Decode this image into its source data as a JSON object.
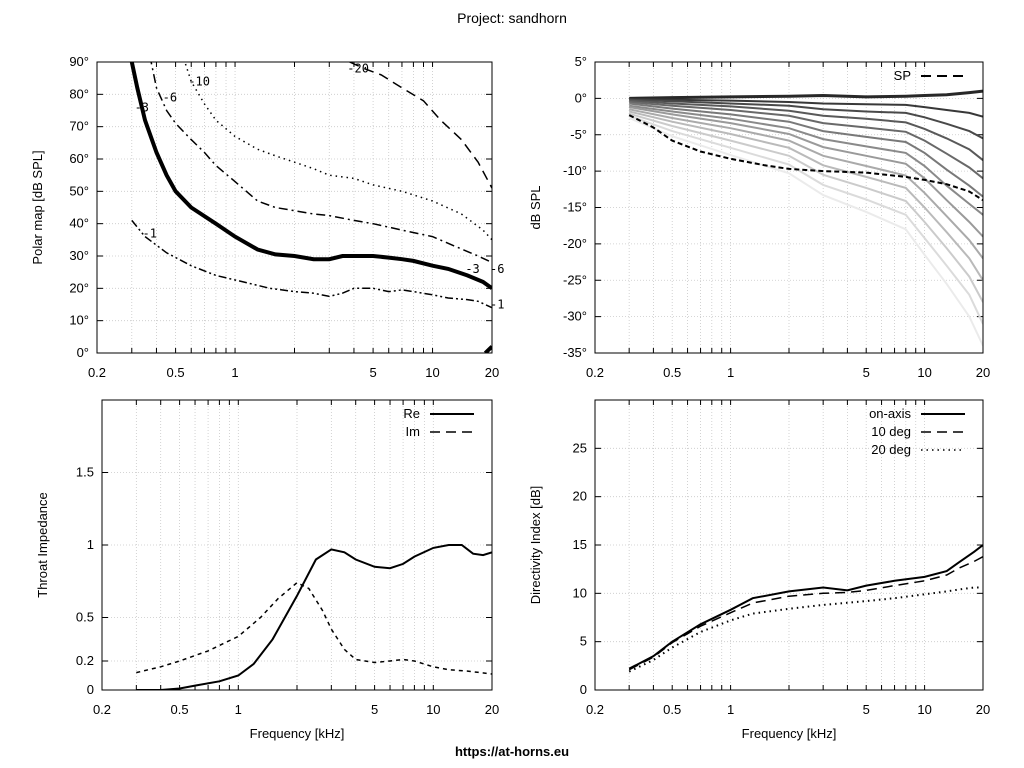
{
  "page": {
    "title": "Project: sandhorn",
    "footer": "https://at-horns.eu"
  },
  "chart_data": [
    {
      "id": "polar",
      "type": "contour",
      "ylabel": "Polar map [dB SPL]",
      "xlabel": "",
      "xscale": "log",
      "xlim": [
        0.2,
        20
      ],
      "ylim": [
        0,
        90
      ],
      "xticks": [
        0.2,
        0.5,
        1,
        5,
        10,
        20
      ],
      "xticklabels": [
        "0.2",
        "0.5",
        "1",
        "5",
        "10",
        "20"
      ],
      "yticks": [
        0,
        10,
        20,
        30,
        40,
        50,
        60,
        70,
        80,
        90
      ],
      "yticklabels": [
        "0°",
        "10°",
        "20°",
        "30°",
        "40°",
        "50°",
        "60°",
        "70°",
        "80°",
        "90°"
      ],
      "grid": true,
      "series": [
        {
          "name": "-1",
          "style": "dash-dot-dot",
          "width": 1.5,
          "points": [
            [
              0.3,
              41
            ],
            [
              0.35,
              36
            ],
            [
              0.45,
              31
            ],
            [
              0.6,
              27
            ],
            [
              0.8,
              24
            ],
            [
              1.1,
              22
            ],
            [
              1.5,
              20
            ],
            [
              2,
              19
            ],
            [
              2.5,
              18.5
            ],
            [
              3,
              17.5
            ],
            [
              3.5,
              18.5
            ],
            [
              4,
              20
            ],
            [
              5,
              20
            ],
            [
              6,
              19
            ],
            [
              7,
              19.5
            ],
            [
              8,
              19
            ],
            [
              10,
              18
            ],
            [
              12,
              17
            ],
            [
              15,
              16.5
            ],
            [
              17,
              16
            ],
            [
              20,
              14
            ]
          ],
          "label_at": [
            0.34,
            37
          ],
          "label_end": [
            20,
            15
          ]
        },
        {
          "name": "-3",
          "style": "solid",
          "width": 4,
          "points": [
            [
              0.3,
              90
            ],
            [
              0.32,
              82
            ],
            [
              0.35,
              72
            ],
            [
              0.4,
              62
            ],
            [
              0.45,
              55
            ],
            [
              0.5,
              50
            ],
            [
              0.6,
              45
            ],
            [
              0.8,
              40
            ],
            [
              1,
              36
            ],
            [
              1.3,
              32
            ],
            [
              1.6,
              30.5
            ],
            [
              2,
              30
            ],
            [
              2.5,
              29
            ],
            [
              3,
              29
            ],
            [
              3.5,
              30
            ],
            [
              4.5,
              30
            ],
            [
              5,
              30
            ],
            [
              6,
              29.5
            ],
            [
              7,
              29
            ],
            [
              8,
              28.5
            ],
            [
              10,
              27
            ],
            [
              12,
              26
            ],
            [
              15,
              24
            ],
            [
              18,
              22
            ],
            [
              20,
              20
            ]
          ],
          "label_at": [
            0.31,
            76
          ],
          "label_end": [
            15,
            26
          ]
        },
        {
          "name": "-6",
          "style": "dash-dot",
          "width": 1.5,
          "points": [
            [
              0.37,
              92
            ],
            [
              0.4,
              82
            ],
            [
              0.45,
              75
            ],
            [
              0.5,
              71
            ],
            [
              0.6,
              66
            ],
            [
              0.7,
              62
            ],
            [
              0.8,
              58
            ],
            [
              1,
              53
            ],
            [
              1.3,
              47
            ],
            [
              1.6,
              45
            ],
            [
              2,
              44
            ],
            [
              2.5,
              43
            ],
            [
              3,
              42.5
            ],
            [
              4,
              41
            ],
            [
              5,
              40
            ],
            [
              7,
              38
            ],
            [
              10,
              36
            ],
            [
              13,
              33
            ],
            [
              17,
              30
            ],
            [
              20,
              28
            ]
          ],
          "label_at": [
            0.43,
            79
          ],
          "label_end": [
            20,
            26
          ]
        },
        {
          "name": "-10",
          "style": "dotted",
          "width": 1.5,
          "points": [
            [
              0.55,
              91
            ],
            [
              0.6,
              84
            ],
            [
              0.7,
              77
            ],
            [
              0.8,
              72
            ],
            [
              1,
              67
            ],
            [
              1.3,
              63
            ],
            [
              1.6,
              61
            ],
            [
              2,
              59
            ],
            [
              2.5,
              57
            ],
            [
              3,
              55
            ],
            [
              4,
              54
            ],
            [
              5,
              52
            ],
            [
              7,
              50
            ],
            [
              10,
              47
            ],
            [
              14,
              43
            ],
            [
              18,
              38
            ],
            [
              20,
              35
            ]
          ],
          "label_at": [
            0.58,
            84
          ]
        },
        {
          "name": "-20",
          "style": "dashed",
          "width": 1.5,
          "points": [
            [
              3.8,
              90
            ],
            [
              4.5,
              88
            ],
            [
              5.5,
              86
            ],
            [
              7,
              82
            ],
            [
              9,
              78
            ],
            [
              11,
              72
            ],
            [
              14,
              66
            ],
            [
              17,
              59
            ],
            [
              20,
              51
            ]
          ],
          "label_at": [
            3.7,
            88
          ]
        },
        {
          "name": "",
          "style": "solid",
          "width": 4,
          "points": [
            [
              18.5,
              0
            ],
            [
              20,
              2
            ]
          ]
        }
      ]
    },
    {
      "id": "spl",
      "type": "line",
      "ylabel": "dB SPL",
      "xlabel": "",
      "xscale": "log",
      "xlim": [
        0.2,
        20
      ],
      "ylim": [
        -35,
        5
      ],
      "xticks": [
        0.2,
        0.5,
        1,
        5,
        10,
        20
      ],
      "xticklabels": [
        "0.2",
        "0.5",
        "1",
        "5",
        "10",
        "20"
      ],
      "yticks": [
        5,
        0,
        -5,
        -10,
        -15,
        -20,
        -25,
        -30,
        -35
      ],
      "yticklabels": [
        "5°",
        "0°",
        "-5°",
        "-10°",
        "-15°",
        "-20°",
        "-25°",
        "-30°",
        "-35°"
      ],
      "grid": true,
      "legend": {
        "position": "top-right",
        "entries": [
          "SP"
        ]
      },
      "family_x": [
        0.3,
        0.5,
        1,
        2,
        3,
        5,
        8,
        10,
        13,
        17,
        20
      ],
      "family": [
        [
          0,
          0.1,
          0.2,
          0.3,
          0.4,
          0.2,
          0.3,
          0.4,
          0.5,
          0.8,
          1
        ],
        [
          -0.1,
          -0.2,
          -0.3,
          -0.5,
          -0.7,
          -0.8,
          -0.9,
          -1.2,
          -1.6,
          -2,
          -2.5
        ],
        [
          -0.2,
          -0.4,
          -0.7,
          -1,
          -1.5,
          -1.8,
          -2,
          -2.6,
          -3.5,
          -4.5,
          -5.5
        ],
        [
          -0.3,
          -0.7,
          -1.1,
          -1.7,
          -2.4,
          -2.8,
          -3.3,
          -4.2,
          -5.5,
          -7,
          -8.5
        ],
        [
          -0.5,
          -1,
          -1.6,
          -2.4,
          -3.4,
          -4,
          -4.6,
          -5.8,
          -7.6,
          -9.5,
          -11
        ],
        [
          -0.7,
          -1.4,
          -2.2,
          -3.2,
          -4.5,
          -5.3,
          -6,
          -7.5,
          -9.8,
          -12,
          -13.5
        ],
        [
          -1,
          -1.8,
          -2.8,
          -4.1,
          -5.6,
          -6.6,
          -7.5,
          -9.3,
          -12,
          -14.5,
          -16
        ],
        [
          -1.2,
          -2.2,
          -3.4,
          -4.9,
          -6.7,
          -7.9,
          -9,
          -11,
          -14,
          -17,
          -19
        ],
        [
          -1.5,
          -2.7,
          -4.1,
          -5.8,
          -7.9,
          -9.3,
          -10.6,
          -13,
          -16.2,
          -19.5,
          -22
        ],
        [
          -1.8,
          -3.2,
          -4.9,
          -6.8,
          -9.2,
          -10.8,
          -12.3,
          -15,
          -18.4,
          -22,
          -25
        ],
        [
          -2.1,
          -3.8,
          -5.8,
          -7.9,
          -10.5,
          -12.3,
          -14.1,
          -17,
          -20.6,
          -24.5,
          -28
        ],
        [
          -2.4,
          -4.5,
          -6.8,
          -9.1,
          -11.9,
          -13.9,
          -16,
          -19.2,
          -23,
          -27,
          -31
        ],
        [
          -2.7,
          -5.2,
          -7.8,
          -10.3,
          -13.3,
          -15.6,
          -18,
          -21.5,
          -25.5,
          -30,
          -34
        ]
      ],
      "sp": {
        "x": [
          0.3,
          0.4,
          0.5,
          0.7,
          1,
          1.5,
          2,
          3,
          5,
          8,
          10,
          13,
          17,
          20
        ],
        "y": [
          -2.3,
          -4,
          -5.8,
          -7.3,
          -8.3,
          -9.2,
          -9.7,
          -10,
          -10.2,
          -10.8,
          -11.2,
          -11.8,
          -12.8,
          -14
        ]
      }
    },
    {
      "id": "impedance",
      "type": "line",
      "ylabel": "Throat Impedance",
      "xlabel": "Frequency [kHz]",
      "xscale": "log",
      "xlim": [
        0.2,
        20
      ],
      "ylim": [
        0,
        2
      ],
      "xticks": [
        0.2,
        0.5,
        1,
        5,
        10,
        20
      ],
      "xticklabels": [
        "0.2",
        "0.5",
        "1",
        "5",
        "10",
        "20"
      ],
      "yticks": [
        0,
        0.2,
        0.5,
        1,
        1.5
      ],
      "yticklabels": [
        "0",
        "0.2",
        "0.5",
        "1",
        "1.5"
      ],
      "grid": true,
      "legend": {
        "position": "top-right",
        "entries": [
          "Re",
          "Im"
        ]
      },
      "series": [
        {
          "name": "Re",
          "style": "solid",
          "x": [
            0.3,
            0.4,
            0.5,
            0.6,
            0.8,
            1,
            1.2,
            1.5,
            2,
            2.5,
            3,
            3.5,
            4,
            5,
            6,
            7,
            8,
            10,
            12,
            14,
            16,
            18,
            20
          ],
          "y": [
            0,
            0,
            0.01,
            0.03,
            0.06,
            0.1,
            0.18,
            0.35,
            0.65,
            0.9,
            0.97,
            0.95,
            0.9,
            0.85,
            0.84,
            0.87,
            0.92,
            0.98,
            1.0,
            1.0,
            0.94,
            0.93,
            0.95
          ]
        },
        {
          "name": "Im",
          "style": "dashed",
          "x": [
            0.3,
            0.4,
            0.5,
            0.7,
            1,
            1.3,
            1.6,
            2,
            2.3,
            2.7,
            3,
            3.5,
            4,
            5,
            6,
            7,
            8,
            10,
            12,
            15,
            20
          ],
          "y": [
            0.12,
            0.16,
            0.2,
            0.27,
            0.37,
            0.5,
            0.63,
            0.74,
            0.7,
            0.55,
            0.42,
            0.28,
            0.21,
            0.19,
            0.2,
            0.21,
            0.2,
            0.16,
            0.14,
            0.13,
            0.11
          ]
        }
      ]
    },
    {
      "id": "di",
      "type": "line",
      "ylabel": "Directivity Index [dB]",
      "xlabel": "Frequency [kHz]",
      "xscale": "log",
      "xlim": [
        0.2,
        20
      ],
      "ylim": [
        0,
        30
      ],
      "xticks": [
        0.2,
        0.5,
        1,
        5,
        10,
        20
      ],
      "xticklabels": [
        "0.2",
        "0.5",
        "1",
        "5",
        "10",
        "20"
      ],
      "yticks": [
        0,
        5,
        10,
        15,
        20,
        25
      ],
      "yticklabels": [
        "0",
        "5",
        "10",
        "15",
        "20",
        "25"
      ],
      "grid": true,
      "legend": {
        "position": "top-right",
        "entries": [
          "on-axis",
          "10 deg",
          "20 deg"
        ]
      },
      "series": [
        {
          "name": "on-axis",
          "style": "solid",
          "x": [
            0.3,
            0.4,
            0.5,
            0.7,
            1,
            1.3,
            2,
            3,
            4,
            5,
            7,
            10,
            13,
            15,
            18,
            20
          ],
          "y": [
            2.2,
            3.5,
            5,
            6.8,
            8.3,
            9.5,
            10.2,
            10.6,
            10.3,
            10.8,
            11.3,
            11.7,
            12.3,
            13.2,
            14.3,
            15
          ]
        },
        {
          "name": "10 deg",
          "style": "dashed",
          "x": [
            0.3,
            0.4,
            0.5,
            0.7,
            1,
            1.3,
            2,
            3,
            4,
            5,
            7,
            10,
            13,
            15,
            18,
            20
          ],
          "y": [
            2.1,
            3.4,
            4.9,
            6.6,
            8,
            9,
            9.7,
            10,
            10.1,
            10.3,
            10.8,
            11.3,
            11.9,
            12.6,
            13.3,
            13.8
          ]
        },
        {
          "name": "20 deg",
          "style": "dotted",
          "x": [
            0.3,
            0.4,
            0.5,
            0.7,
            1,
            1.3,
            2,
            3,
            5,
            7,
            10,
            13,
            15,
            18,
            20
          ],
          "y": [
            1.9,
            3.1,
            4.4,
            6,
            7.2,
            7.9,
            8.4,
            8.8,
            9.2,
            9.5,
            9.9,
            10.2,
            10.4,
            10.6,
            10.6
          ]
        }
      ]
    }
  ]
}
